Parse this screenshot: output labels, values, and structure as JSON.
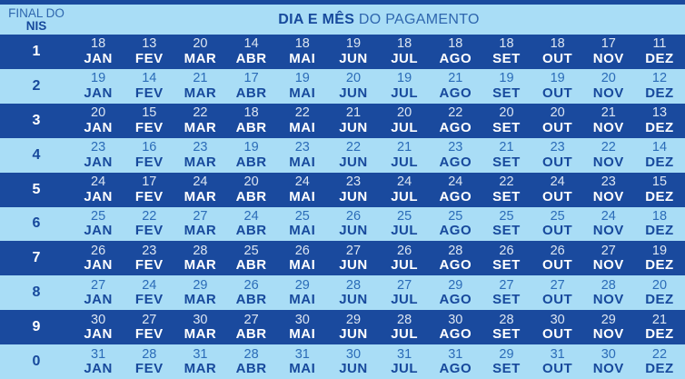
{
  "header": {
    "nis_line1": "FINAL DO",
    "nis_line2": "NIS",
    "title_bold": "DIA E MÊS",
    "title_regular": " DO PAGAMENTO"
  },
  "months": [
    "JAN",
    "FEV",
    "MAR",
    "ABR",
    "MAI",
    "JUN",
    "JUL",
    "AGO",
    "SET",
    "OUT",
    "NOV",
    "DEZ"
  ],
  "rows": [
    {
      "nis": "1",
      "days": [
        18,
        13,
        20,
        14,
        18,
        19,
        18,
        18,
        18,
        18,
        17,
        11
      ]
    },
    {
      "nis": "2",
      "days": [
        19,
        14,
        21,
        17,
        19,
        20,
        19,
        21,
        19,
        19,
        20,
        12
      ]
    },
    {
      "nis": "3",
      "days": [
        20,
        15,
        22,
        18,
        22,
        21,
        20,
        22,
        20,
        20,
        21,
        13
      ]
    },
    {
      "nis": "4",
      "days": [
        23,
        16,
        23,
        19,
        23,
        22,
        21,
        23,
        21,
        23,
        22,
        14
      ]
    },
    {
      "nis": "5",
      "days": [
        24,
        17,
        24,
        20,
        24,
        23,
        24,
        24,
        22,
        24,
        23,
        15
      ]
    },
    {
      "nis": "6",
      "days": [
        25,
        22,
        27,
        24,
        25,
        26,
        25,
        25,
        25,
        25,
        24,
        18
      ]
    },
    {
      "nis": "7",
      "days": [
        26,
        23,
        28,
        25,
        26,
        27,
        26,
        28,
        26,
        26,
        27,
        19
      ]
    },
    {
      "nis": "8",
      "days": [
        27,
        24,
        29,
        26,
        29,
        28,
        27,
        29,
        27,
        27,
        28,
        20
      ]
    },
    {
      "nis": "9",
      "days": [
        30,
        27,
        30,
        27,
        30,
        29,
        28,
        30,
        28,
        30,
        29,
        21
      ]
    },
    {
      "nis": "0",
      "days": [
        31,
        28,
        31,
        28,
        31,
        30,
        31,
        31,
        29,
        31,
        30,
        22
      ]
    }
  ],
  "colors": {
    "dark_blue": "#1A4A9E",
    "light_blue": "#A9DDF6",
    "navy_text": "#17499C",
    "mid_blue_text": "#2E66AE",
    "dark_row_day_text": "#DCE6F2",
    "light_row_day_text": "#2B6CB8",
    "white_text": "#FFFFFF"
  }
}
